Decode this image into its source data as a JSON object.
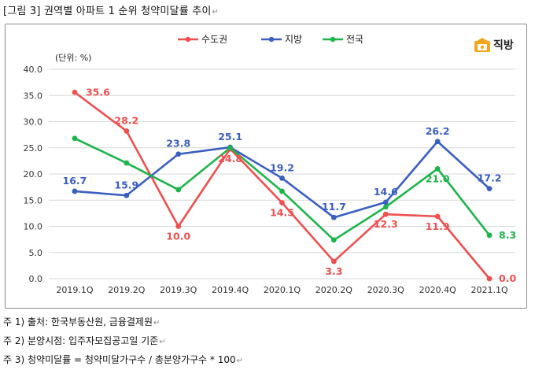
{
  "caption": "[그림 3] 권역별 아파트 1 순위 청약미달률 추이",
  "caption_mark": "↵",
  "logo": {
    "text": "직방",
    "icon": "house-icon",
    "color": "#f4a51c"
  },
  "chart_data": {
    "type": "line",
    "unit_label": "(단위: %)",
    "categories": [
      "2019.1Q",
      "2019.2Q",
      "2019.3Q",
      "2019.4Q",
      "2020.1Q",
      "2020.2Q",
      "2020.3Q",
      "2020.4Q",
      "2021.1Q"
    ],
    "ylim": [
      0,
      40
    ],
    "yticks": [
      "0.0",
      "5.0",
      "10.0",
      "15.0",
      "20.0",
      "25.0",
      "30.0",
      "35.0",
      "40.0"
    ],
    "grid": true,
    "legend_position": "top",
    "series": [
      {
        "name": "수도권",
        "color": "#ee4f4f",
        "values": [
          35.6,
          28.2,
          10.0,
          24.8,
          14.5,
          3.3,
          12.3,
          11.9,
          0.0
        ],
        "labels": [
          "35.6",
          "28.2",
          "10.0",
          "24.8",
          "14.5",
          "3.3",
          "12.3",
          "11.9",
          "0.0"
        ]
      },
      {
        "name": "지방",
        "color": "#3a5fbf",
        "values": [
          16.7,
          15.9,
          23.8,
          25.1,
          19.2,
          11.7,
          14.6,
          26.2,
          17.2
        ],
        "labels": [
          "16.7",
          "15.9",
          "23.8",
          "25.1",
          "19.2",
          "11.7",
          "14.6",
          "26.2",
          "17.2"
        ]
      },
      {
        "name": "전국",
        "color": "#1db44a",
        "values": [
          26.8,
          22.1,
          17.0,
          25.0,
          16.7,
          7.4,
          13.7,
          21.0,
          8.3
        ],
        "labels": [
          "",
          "",
          "",
          "",
          "",
          "",
          "",
          "21.0",
          "8.3"
        ]
      }
    ]
  },
  "notes": [
    {
      "text": "주 1) 출처: 한국부동산원, 금융결제원",
      "mark": "↵"
    },
    {
      "text": "주 2) 분양시점: 입주자모집공고일 기준",
      "mark": "↵"
    },
    {
      "text": "주 3) 청약미달률 = 청약미달가구수 / 총분양가구수 * 100",
      "mark": "↵"
    }
  ]
}
